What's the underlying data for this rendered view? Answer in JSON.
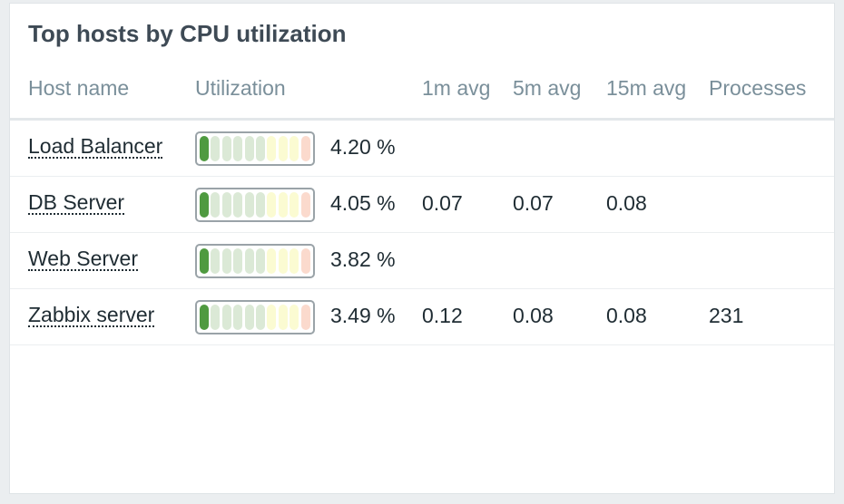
{
  "title": "Top hosts by CPU utilization",
  "columns": [
    "Host name",
    "Utilization",
    "1m avg",
    "5m avg",
    "15m avg",
    "Processes"
  ],
  "rows": [
    {
      "host": "Load Balancer",
      "utilization": {
        "value": 4.2,
        "label": "4.20 %"
      },
      "avg1": null,
      "avg5": null,
      "avg15": null,
      "processes": null
    },
    {
      "host": "DB Server",
      "utilization": {
        "value": 4.05,
        "label": "4.05 %"
      },
      "avg1": 0.07,
      "avg5": 0.07,
      "avg15": 0.08,
      "processes": null
    },
    {
      "host": "Web Server",
      "utilization": {
        "value": 3.82,
        "label": "3.82 %"
      },
      "avg1": null,
      "avg5": null,
      "avg15": null,
      "processes": null
    },
    {
      "host": "Zabbix server",
      "utilization": {
        "value": 3.49,
        "label": "3.49 %"
      },
      "avg1": 0.12,
      "avg5": 0.08,
      "avg15": 0.08,
      "processes": 231
    }
  ]
}
